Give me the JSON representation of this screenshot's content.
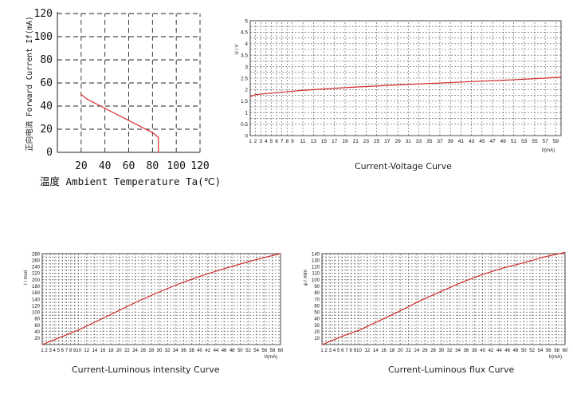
{
  "chart_data": [
    {
      "id": "derating",
      "type": "line",
      "title": "",
      "xlabel": "温度  Ambient Temperature Ta(℃)",
      "ylabel": "正向电流  Forward Current If(mA)",
      "xlim": [
        0,
        120
      ],
      "ylim": [
        0,
        120
      ],
      "x_ticks": [
        "20",
        "40",
        "60",
        "80",
        "100",
        "120"
      ],
      "y_ticks": [
        "0",
        "20",
        "40",
        "60",
        "80",
        "100",
        "120"
      ],
      "grid": true,
      "series": [
        {
          "x": [
            20,
            25,
            80,
            85,
            85
          ],
          "y": [
            50,
            46,
            17,
            13,
            0
          ]
        }
      ]
    },
    {
      "id": "voltage",
      "type": "line",
      "title": "Current-Voltage Curve",
      "xlabel": "I/(mA)",
      "ylabel": "U / V",
      "xlim": [
        1,
        60
      ],
      "ylim": [
        0,
        5
      ],
      "x_ticks": [
        "1",
        "2",
        "3",
        "4",
        "5",
        "6",
        "7",
        "8",
        "9",
        "11",
        "13",
        "15",
        "17",
        "19",
        "21",
        "23",
        "25",
        "27",
        "29",
        "31",
        "33",
        "35",
        "37",
        "39",
        "41",
        "43",
        "45",
        "47",
        "49",
        "51",
        "53",
        "55",
        "57",
        "59"
      ],
      "y_ticks": [
        "0",
        "0.5",
        "1",
        "1.5",
        "2",
        "2.5",
        "3",
        "3.5",
        "4",
        "4.5",
        "5"
      ],
      "grid": true,
      "series": [
        {
          "x": [
            1,
            2,
            5,
            10,
            15,
            20,
            30,
            40,
            50,
            57,
            60
          ],
          "y": [
            1.7,
            1.78,
            1.85,
            1.95,
            2.03,
            2.1,
            2.22,
            2.32,
            2.42,
            2.5,
            2.55
          ]
        }
      ]
    },
    {
      "id": "intensity",
      "type": "line",
      "title": "Current-Luminous intensity Curve",
      "xlabel": "I/(mA)",
      "ylabel": "I / mcd",
      "xlim": [
        1,
        60
      ],
      "ylim": [
        0,
        280
      ],
      "x_ticks": [
        "1",
        "2",
        "3",
        "4",
        "5",
        "6",
        "7",
        "8",
        "9",
        "10",
        "12",
        "14",
        "16",
        "18",
        "20",
        "22",
        "24",
        "26",
        "28",
        "30",
        "32",
        "34",
        "36",
        "38",
        "40",
        "42",
        "44",
        "46",
        "48",
        "50",
        "52",
        "54",
        "56",
        "58",
        "60"
      ],
      "y_ticks": [
        "20",
        "40",
        "60",
        "80",
        "100",
        "120",
        "140",
        "160",
        "180",
        "200",
        "220",
        "240",
        "260",
        "280"
      ],
      "grid": true,
      "series": [
        {
          "x": [
            1,
            3,
            6,
            10,
            15,
            20,
            25,
            30,
            35,
            40,
            45,
            50,
            55,
            60
          ],
          "y": [
            0,
            10,
            25,
            45,
            75,
            105,
            135,
            162,
            188,
            210,
            230,
            248,
            265,
            280
          ]
        }
      ]
    },
    {
      "id": "flux",
      "type": "line",
      "title": "Current-Luminous flux Curve",
      "xlabel": "I/(mA)",
      "ylabel": "φ / mlm",
      "xlim": [
        1,
        60
      ],
      "ylim": [
        0,
        140
      ],
      "x_ticks": [
        "1",
        "2",
        "3",
        "4",
        "5",
        "6",
        "7",
        "8",
        "9",
        "10",
        "12",
        "14",
        "16",
        "18",
        "20",
        "22",
        "24",
        "26",
        "28",
        "30",
        "32",
        "34",
        "36",
        "38",
        "40",
        "42",
        "44",
        "46",
        "48",
        "50",
        "52",
        "54",
        "56",
        "58",
        "60"
      ],
      "y_ticks": [
        "10",
        "20",
        "30",
        "40",
        "50",
        "60",
        "70",
        "80",
        "90",
        "100",
        "110",
        "120",
        "130",
        "140"
      ],
      "grid": true,
      "series": [
        {
          "x": [
            1,
            3,
            6,
            10,
            15,
            20,
            25,
            30,
            35,
            40,
            45,
            50,
            55,
            60
          ],
          "y": [
            0,
            5,
            13,
            22,
            37,
            52,
            68,
            82,
            96,
            108,
            118,
            126,
            135,
            142
          ]
        }
      ]
    }
  ]
}
